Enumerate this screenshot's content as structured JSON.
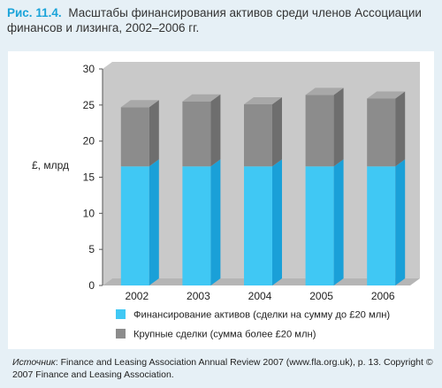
{
  "caption": {
    "label": "Рис. 11.4.",
    "text": "Масштабы финансирования активов среди членов Ассоциации финансов и лизинга, 2002–2006 гг."
  },
  "source": {
    "label": "Источник",
    "text": ": Finance and Leasing Association Annual Review 2007 (www.fla.org.uk), p. 13. Copyright © 2007 Finance and Leasing Association."
  },
  "colors": {
    "page_background": "#e6f0f6",
    "panel_background": "#ffffff",
    "wall": "#c9c9c9",
    "floor": "#b5b5b5",
    "series_1_front": "#40c8f4",
    "series_1_side": "#1aa0d8",
    "series_1_top": "#7fdcf8",
    "series_2_front": "#8c8c8c",
    "series_2_side": "#6e6e6e",
    "series_2_top": "#a8a8a8",
    "accent": "#1aa3d9"
  },
  "chart_data": {
    "type": "bar",
    "stacked": true,
    "categories": [
      "2002",
      "2003",
      "2004",
      "2005",
      "2006"
    ],
    "series": [
      {
        "name": "Финансирование активов (сделки на сумму до £20 млн)",
        "values": [
          16.5,
          16.5,
          16.5,
          16.5,
          16.5
        ]
      },
      {
        "name": "Крупные сделки (сумма более £20 млн)",
        "values": [
          8.2,
          9.0,
          8.6,
          9.9,
          9.4
        ]
      }
    ],
    "ylabel": "£, млрд",
    "ylim": [
      0,
      30
    ],
    "yticks": [
      0,
      5,
      10,
      15,
      20,
      25,
      30
    ],
    "grid": false,
    "legend": "bottom"
  }
}
